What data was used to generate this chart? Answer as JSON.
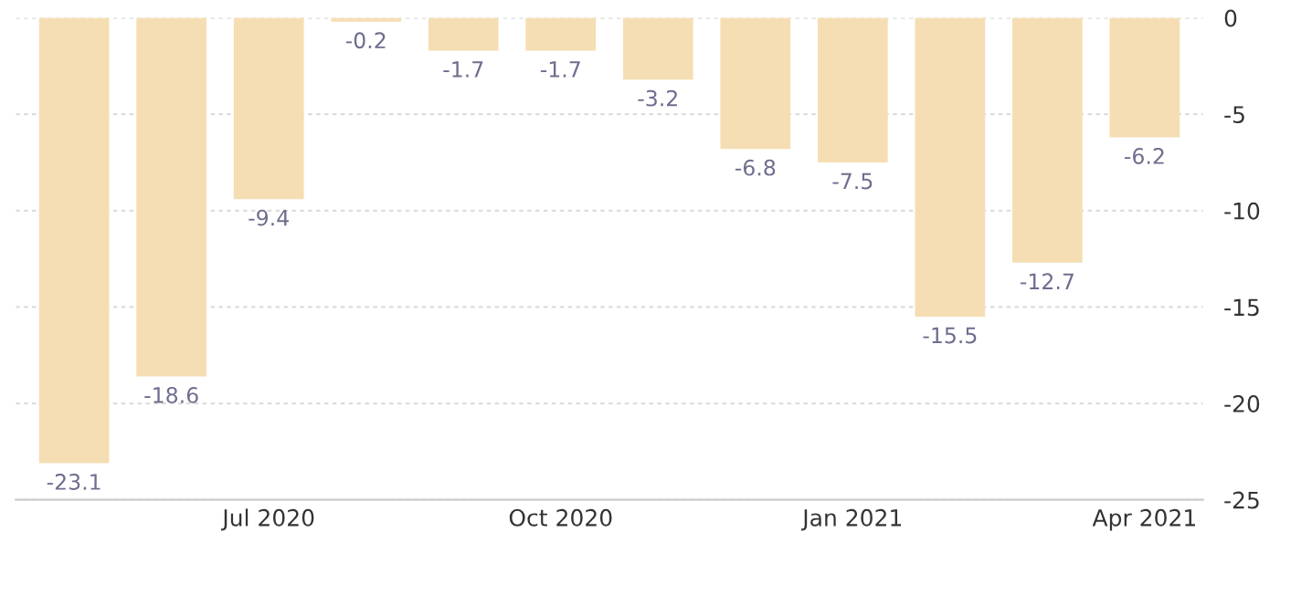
{
  "chart_data": {
    "type": "bar",
    "categories": [
      null,
      null,
      "Jul 2020",
      null,
      null,
      "Oct 2020",
      null,
      null,
      "Jan 2021",
      null,
      null,
      "Apr 2021"
    ],
    "values": [
      -23.1,
      -18.6,
      -9.4,
      -0.2,
      -1.7,
      -1.7,
      -3.2,
      -6.8,
      -7.5,
      -15.5,
      -12.7,
      -6.2
    ],
    "color": "#f5deb3",
    "data_labels": true,
    "ylim": [
      -25,
      0
    ],
    "yticks": [
      -25,
      -20,
      -15,
      -10,
      -5,
      0
    ],
    "grid": "y"
  }
}
